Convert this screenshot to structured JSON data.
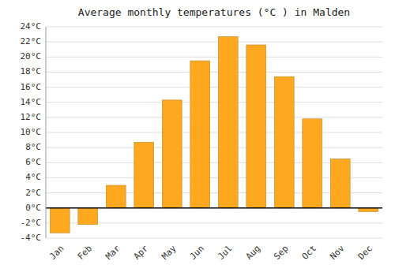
{
  "chart_data": {
    "type": "bar",
    "title": "Average monthly temperatures (°C ) in Malden",
    "categories": [
      "Jan",
      "Feb",
      "Mar",
      "Apr",
      "May",
      "Jun",
      "Jul",
      "Aug",
      "Sep",
      "Oct",
      "Nov",
      "Dec"
    ],
    "values": [
      -3.3,
      -2.2,
      3.0,
      8.7,
      14.3,
      19.5,
      22.7,
      21.6,
      17.4,
      11.8,
      6.5,
      -0.5
    ],
    "color": "#FFA820",
    "ylim": [
      -4,
      24
    ],
    "yticks": [
      {
        "value": -4,
        "label": "-4°C"
      },
      {
        "value": -2,
        "label": "-2°C"
      },
      {
        "value": 0,
        "label": "0°C"
      },
      {
        "value": 2,
        "label": "2°C"
      },
      {
        "value": 4,
        "label": "4°C"
      },
      {
        "value": 6,
        "label": "6°C"
      },
      {
        "value": 8,
        "label": "8°C"
      },
      {
        "value": 10,
        "label": "10°C"
      },
      {
        "value": 12,
        "label": "12°C"
      },
      {
        "value": 14,
        "label": "14°C"
      },
      {
        "value": 16,
        "label": "16°C"
      },
      {
        "value": 18,
        "label": "18°C"
      },
      {
        "value": 20,
        "label": "20°C"
      },
      {
        "value": 22,
        "label": "22°C"
      },
      {
        "value": 24,
        "label": "24°C"
      }
    ],
    "grid": true
  }
}
